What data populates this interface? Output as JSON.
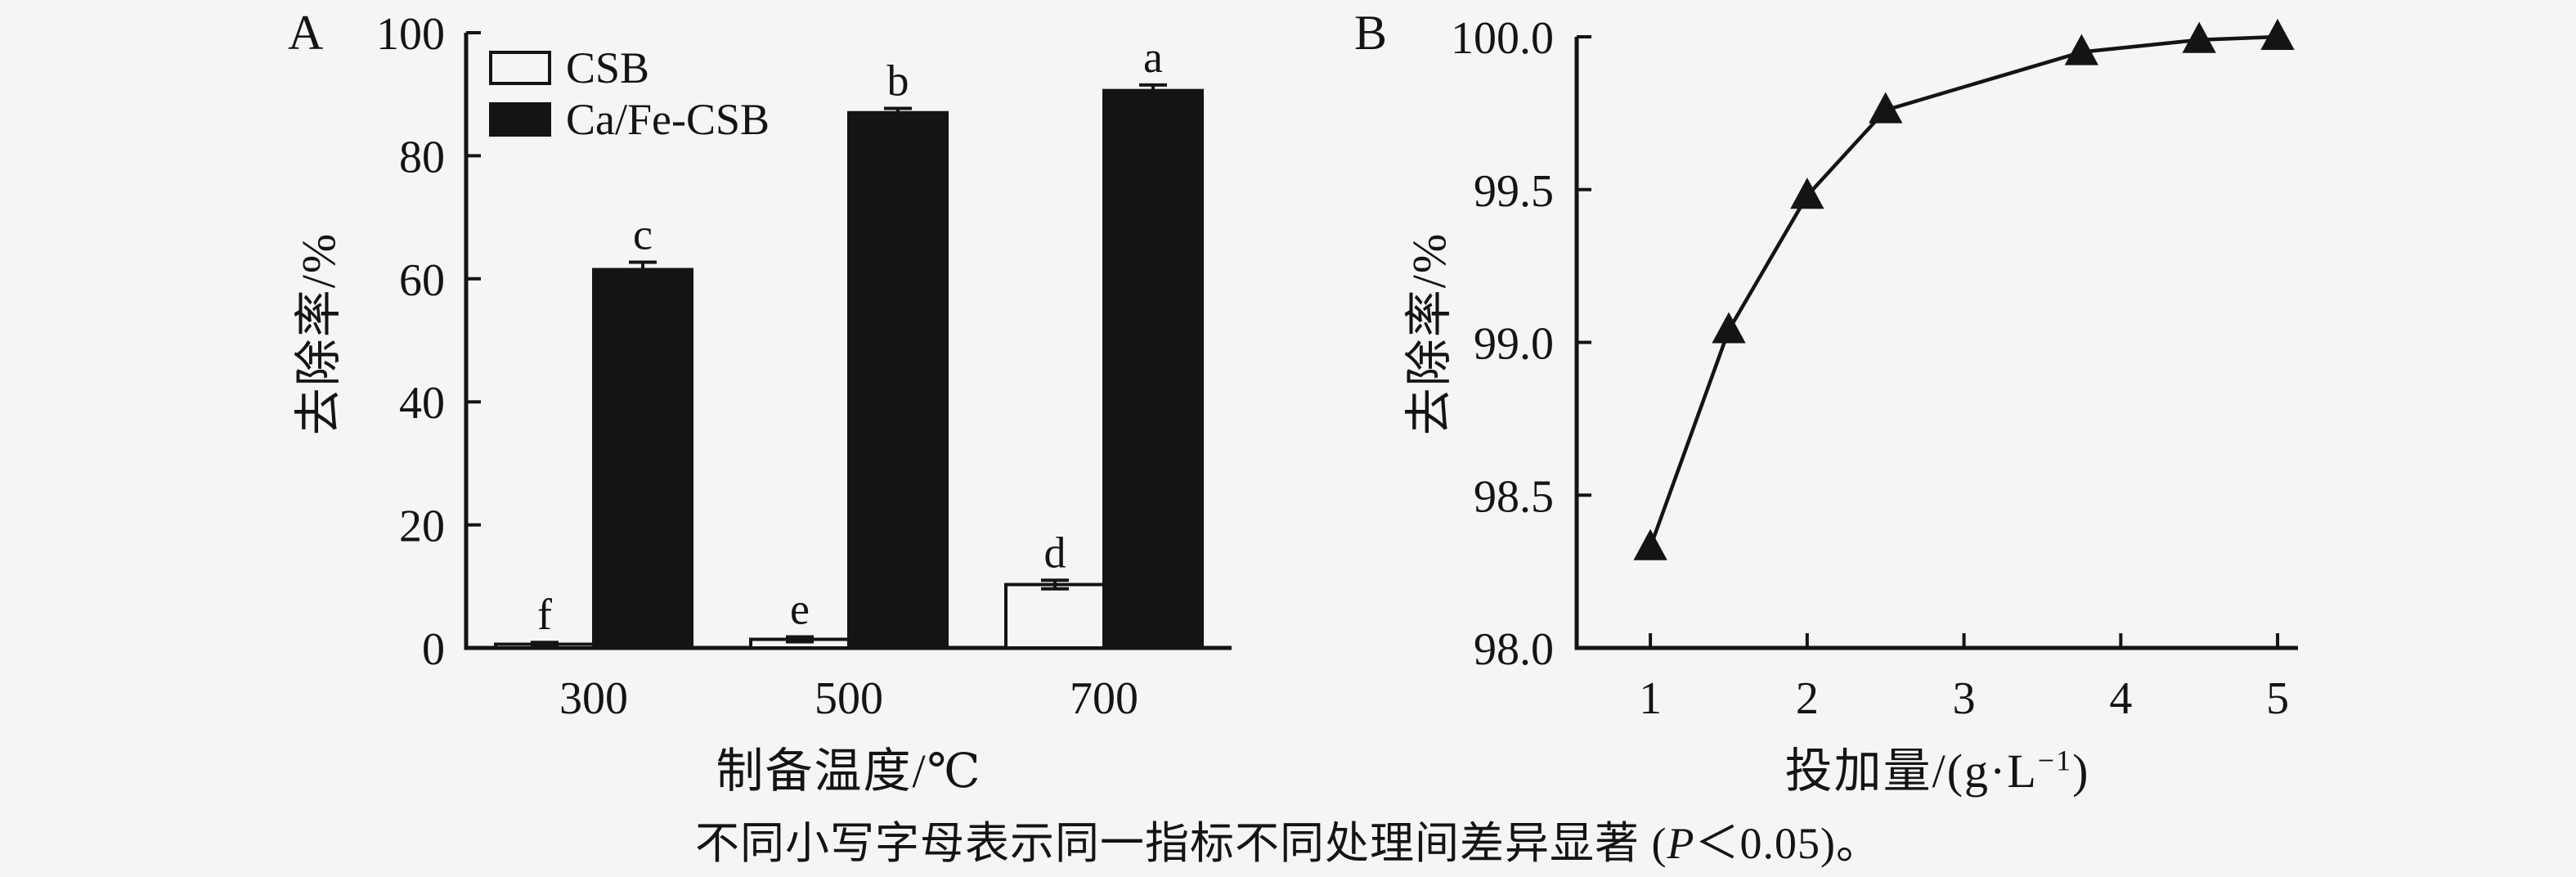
{
  "figure": {
    "background": "#f5f5f5",
    "ink": "#141414",
    "caption": {
      "prefix": "不同小写字母表示同一指标不同处理间差异显著 (",
      "italic": "P",
      "suffix": "＜0.05)。"
    }
  },
  "panelA": {
    "panel_label": "A",
    "ylabel": "去除率/%",
    "xlabel": "制备温度/℃",
    "legend": [
      {
        "label": "CSB",
        "swatch": "open"
      },
      {
        "label": "Ca/Fe-CSB",
        "swatch": "solid"
      }
    ]
  },
  "panelB": {
    "panel_label": "B",
    "ylabel": "去除率/%",
    "xlabel_prefix": "投加量/(g·L",
    "xlabel_sup": "−1",
    "xlabel_suffix": ")"
  },
  "chart_data": [
    {
      "type": "bar",
      "panel": "A",
      "title": "",
      "xlabel": "制备温度/℃",
      "ylabel": "去除率/%",
      "categories": [
        "300",
        "500",
        "700"
      ],
      "ylim": [
        0,
        100
      ],
      "yticks": [
        0,
        20,
        40,
        60,
        80,
        100
      ],
      "yticklabels": [
        "0",
        "20",
        "40",
        "60",
        "80",
        "100"
      ],
      "grid": false,
      "legend_position": "upper-left-inside",
      "series": [
        {
          "name": "CSB",
          "style": "open",
          "values": [
            0.6,
            1.4,
            10.3
          ],
          "errors": [
            0.3,
            0.4,
            0.7
          ],
          "letters": [
            "f",
            "e",
            "d"
          ]
        },
        {
          "name": "Ca/Fe-CSB",
          "style": "solid",
          "values": [
            61.5,
            87.0,
            90.6
          ],
          "errors": [
            1.2,
            0.7,
            0.9
          ],
          "letters": [
            "c",
            "b",
            "a"
          ]
        }
      ]
    },
    {
      "type": "line",
      "panel": "B",
      "title": "",
      "xlabel": "投加量/(g·L⁻¹)",
      "ylabel": "去除率/%",
      "x": [
        1,
        1.5,
        2,
        2.5,
        3.75,
        4.5,
        5
      ],
      "y": [
        98.33,
        99.04,
        99.48,
        99.76,
        99.95,
        99.99,
        100.0
      ],
      "xlim": [
        0.53,
        5.13
      ],
      "ylim": [
        98.0,
        100.0
      ],
      "xticks": [
        1,
        2,
        3,
        4,
        5
      ],
      "xticklabels": [
        "1",
        "2",
        "3",
        "4",
        "5"
      ],
      "yticks": [
        98.0,
        98.5,
        99.0,
        99.5,
        100.0
      ],
      "yticklabels": [
        "98.0",
        "98.5",
        "99.0",
        "99.5",
        "100.0"
      ],
      "marker": "triangle-up",
      "line_color": "#141414",
      "grid": false
    }
  ]
}
